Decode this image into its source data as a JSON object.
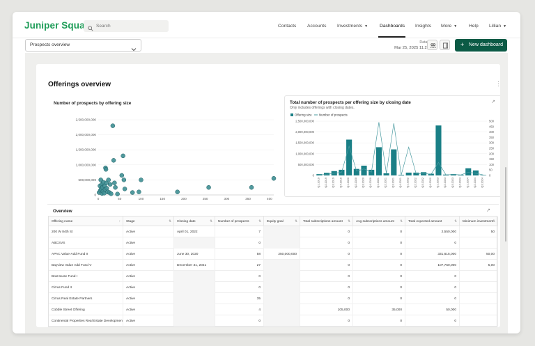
{
  "nav": {
    "brand": "Juniper Square",
    "search_placeholder": "Search",
    "links": [
      "Contacts",
      "Accounts",
      "Investments",
      "Dashboards",
      "Insights",
      "More",
      "Help",
      "Lillian"
    ],
    "active": "Dashboards"
  },
  "toolbar": {
    "dashboard_select": "Prospects overview",
    "data_as_of_label": "Data as of",
    "data_as_of_value": "Mar 25, 2025 11:20 AM",
    "new_dashboard": "New dashboard"
  },
  "colors": {
    "brand_green": "#1f9d59",
    "button_green": "#0b5a45",
    "teal": "#1a7f86",
    "marker": "#3f8f93"
  },
  "card": {
    "title": "Offerings overview"
  },
  "scatter": {
    "title": "Number of prospects by offering size",
    "y_ticks": [
      "2,500,000,000",
      "2,000,000,000",
      "1,500,000,000",
      "1,000,000,000",
      "500,000,000",
      "0"
    ],
    "x_ticks": [
      "0",
      "50",
      "100",
      "150",
      "200",
      "250",
      "300",
      "350",
      "400"
    ]
  },
  "bar_chart": {
    "title": "Total number of prospects per offering size by closing date",
    "subtitle": "Only includes offerings with closing dates.",
    "legend_bar": "Offering size",
    "legend_line": "Number of prospects",
    "y_left_ticks": [
      "2,500,000,000",
      "2,000,000,000",
      "1,500,000,000",
      "1,000,000,000",
      "500,000,000",
      "0"
    ],
    "y_right_ticks": [
      "500",
      "450",
      "400",
      "350",
      "300",
      "250",
      "200",
      "150",
      "100",
      "50",
      "0"
    ]
  },
  "chart_data": [
    {
      "type": "scatter",
      "title": "Number of prospects by offering size",
      "xlim": [
        0,
        410
      ],
      "ylim": [
        0,
        2500000000
      ],
      "points": [
        [
          2,
          80000000
        ],
        [
          4,
          300000000
        ],
        [
          5,
          150000000
        ],
        [
          6,
          500000000
        ],
        [
          7,
          200000000
        ],
        [
          8,
          350000000
        ],
        [
          9,
          50000000
        ],
        [
          10,
          250000000
        ],
        [
          11,
          120000000
        ],
        [
          12,
          420000000
        ],
        [
          14,
          60000000
        ],
        [
          15,
          300000000
        ],
        [
          16,
          180000000
        ],
        [
          17,
          900000000
        ],
        [
          18,
          850000000
        ],
        [
          19,
          400000000
        ],
        [
          20,
          220000000
        ],
        [
          22,
          100000000
        ],
        [
          24,
          500000000
        ],
        [
          26,
          80000000
        ],
        [
          28,
          350000000
        ],
        [
          30,
          40000000
        ],
        [
          34,
          2300000000
        ],
        [
          36,
          1150000000
        ],
        [
          38,
          400000000
        ],
        [
          40,
          250000000
        ],
        [
          45,
          30000000
        ],
        [
          55,
          650000000
        ],
        [
          58,
          1300000000
        ],
        [
          60,
          500000000
        ],
        [
          62,
          200000000
        ],
        [
          80,
          80000000
        ],
        [
          95,
          100000000
        ],
        [
          100,
          500000000
        ],
        [
          185,
          100000000
        ],
        [
          258,
          250000000
        ],
        [
          358,
          250000000
        ],
        [
          410,
          550000000
        ]
      ]
    },
    {
      "type": "bar",
      "title": "Total number of prospects per offering size by closing date",
      "categories": [
        "Q1 2019",
        "Q2 2019",
        "Q3 2019",
        "Q4 2019",
        "Q1 2020",
        "Q2 2020",
        "Q3 2020",
        "Q4 2020",
        "Q1 2021",
        "Q2 2021",
        "Q3 2021",
        "Q4 2021",
        "Q1 2022",
        "Q2 2022",
        "Q3 2022",
        "Q4 2022",
        "Q1 2023",
        "Q2 2023",
        "Q3 2023",
        "Q4 2023",
        "Q1 2024",
        "Q2 2024",
        "Q3 2024"
      ],
      "series": [
        {
          "name": "Offering size",
          "type": "bar",
          "axis": "left",
          "values": [
            60000000,
            120000000,
            200000000,
            260000000,
            1650000000,
            300000000,
            450000000,
            260000000,
            1300000000,
            100000000,
            1200000000,
            30000000,
            130000000,
            130000000,
            150000000,
            80000000,
            2300000000,
            40000000,
            60000000,
            30000000,
            330000000,
            230000000,
            20000000
          ]
        },
        {
          "name": "Number of prospects",
          "type": "line",
          "axis": "right",
          "values": [
            5,
            10,
            20,
            30,
            270,
            40,
            60,
            30,
            490,
            20,
            480,
            5,
            260,
            15,
            20,
            10,
            120,
            5,
            10,
            5,
            30,
            20,
            5
          ]
        }
      ],
      "ylim_left": [
        0,
        2500000000
      ],
      "ylim_right": [
        0,
        500
      ],
      "legend": "top-left"
    }
  ],
  "overview": {
    "title": "Overview",
    "columns": [
      "Offering name",
      "Stage",
      "Closing date",
      "Number of prospects",
      "Equity goal",
      "Total subscriptions amount",
      "Avg subscriptions amount",
      "Total expected amount",
      "Minimum investment"
    ],
    "rows": [
      [
        "200 W 84th St",
        "Active",
        "April 01, 2022",
        "7",
        "",
        "0",
        "0",
        "2,550,000",
        "50"
      ],
      [
        "ABCSVS",
        "Active",
        "",
        "0",
        "",
        "0",
        "0",
        "0",
        ""
      ],
      [
        "APAC Value-Add Fund II",
        "Active",
        "June 30, 2020",
        "58",
        "250,000,000",
        "0",
        "0",
        "331,615,000",
        "50,00"
      ],
      [
        "Bayview Value Add Fund V",
        "Active",
        "December 31, 2021",
        "27",
        "",
        "0",
        "0",
        "107,750,000",
        "5,00"
      ],
      [
        "BoxHouse Fund I",
        "Active",
        "",
        "0",
        "",
        "0",
        "0",
        "0",
        ""
      ],
      [
        "Cirrus Fund II",
        "Active",
        "",
        "0",
        "",
        "0",
        "0",
        "0",
        ""
      ],
      [
        "Cirrus Real Estate Partners",
        "Active",
        "",
        "35",
        "",
        "0",
        "0",
        "0",
        ""
      ],
      [
        "Cobble Street Offering",
        "Active",
        "",
        "4",
        "",
        "105,000",
        "35,000",
        "50,000",
        ""
      ],
      [
        "Continental Properties Real Estate Development F...",
        "Active",
        "",
        "0",
        "",
        "0",
        "0",
        "0",
        ""
      ]
    ]
  }
}
